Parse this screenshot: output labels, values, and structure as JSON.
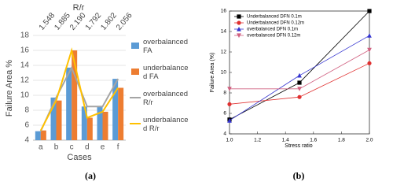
{
  "chart_data": [
    {
      "type": "bar",
      "top_axis_title": "R/r",
      "top_axis_labels": [
        "1.548",
        "1.885",
        "2.190",
        "1.792",
        "1.802",
        "2.056"
      ],
      "y_label": "Failure Area %",
      "x_label": "Cases",
      "caption": "(a)",
      "categories": [
        "a",
        "b",
        "c",
        "d",
        "e",
        "f"
      ],
      "series": [
        {
          "name": "overbalanced FA",
          "type": "bar",
          "color": "#5b9bd5",
          "values": [
            5.2,
            9.7,
            13.7,
            8.5,
            8.5,
            12.2
          ]
        },
        {
          "name": "underbalanced FA",
          "type": "bar",
          "color": "#ed7d31",
          "values": [
            5.3,
            9.3,
            16.0,
            7.0,
            7.8,
            11.0
          ]
        },
        {
          "name": "overbalanced R/r",
          "type": "line",
          "color": "#a5a5a5",
          "values": [
            5.2,
            9.7,
            13.7,
            8.5,
            8.5,
            12.2
          ]
        },
        {
          "name": "underbalanced R/r",
          "type": "line",
          "color": "#ffc000",
          "values": [
            5.3,
            9.3,
            16.0,
            7.0,
            7.8,
            11.0
          ]
        }
      ],
      "ylim": [
        4,
        18
      ],
      "yticks": [
        4,
        6,
        8,
        10,
        12,
        14,
        16,
        18
      ],
      "grid": true
    },
    {
      "type": "line",
      "x_label": "Stress ratio",
      "y_label": "Failure Area (%)",
      "caption": "(b)",
      "series": [
        {
          "name": "Underbalanced DFN 0.1m",
          "color": "#000000",
          "marker": "square",
          "x": [
            1.0,
            1.5,
            2.0
          ],
          "values": [
            5.4,
            9.0,
            16.0
          ]
        },
        {
          "name": "Underbalanced DFN 0.12m",
          "color": "#e03030",
          "marker": "circle",
          "x": [
            1.0,
            1.5,
            2.0
          ],
          "values": [
            6.9,
            7.6,
            10.9
          ]
        },
        {
          "name": "overbalanced DFN 0.1m",
          "color": "#3434d0",
          "marker": "triangle",
          "x": [
            1.0,
            1.5,
            2.0
          ],
          "values": [
            5.3,
            9.7,
            13.6
          ]
        },
        {
          "name": "overbalanced DFN 0.12m",
          "color": "#d06080",
          "marker": "triangle-down",
          "x": [
            1.0,
            1.5,
            2.0
          ],
          "values": [
            8.4,
            8.4,
            12.2
          ]
        }
      ],
      "xlim": [
        1.0,
        2.0
      ],
      "xticks": [
        {
          "value": 1.0,
          "label": "1.0"
        },
        {
          "value": 1.2,
          "label": "1.2"
        },
        {
          "value": 1.4,
          "label": "1.4"
        },
        {
          "value": 1.6,
          "label": "1.6"
        },
        {
          "value": 1.8,
          "label": "1.8"
        },
        {
          "value": 2.0,
          "label": "2.0"
        }
      ],
      "ylim": [
        4,
        16
      ],
      "yticks": [
        4,
        6,
        8,
        10,
        12,
        14,
        16
      ],
      "legend": "upper left"
    }
  ]
}
